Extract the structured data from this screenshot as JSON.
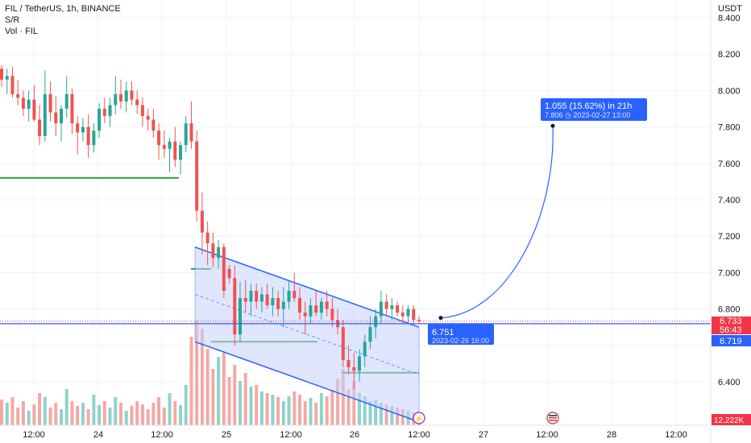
{
  "legend": {
    "symbol_line": "FIL / TetherUS, 1h, BINANCE",
    "indicator_1": "S/R",
    "indicator_2": "Vol · FIL"
  },
  "price_axis": {
    "currency": "USDT",
    "ticks": [
      "8.400",
      "8.200",
      "8.000",
      "7.800",
      "7.600",
      "7.400",
      "7.200",
      "7.000",
      "6.800",
      "6.400"
    ],
    "tag_last": "6.733",
    "tag_countdown": "56:43",
    "tag_line": "6.719",
    "tag_volume": "12.222K"
  },
  "time_axis": {
    "ticks": [
      "12:00",
      "24",
      "12:00",
      "25",
      "12:00",
      "26",
      "12:00",
      "27",
      "12:00",
      "28",
      "12:00"
    ]
  },
  "projection": {
    "top_label_line1": "1.055 (15.62%) in 21h",
    "top_label_line2": "7.806 ◷ 2023-02-27  13:00",
    "start_label_line1": "6.751",
    "start_label_line2": "2023-02-26 16:00"
  },
  "colors": {
    "up": "#26a69a",
    "down": "#ef5350",
    "vol_up": "#8fd3cb",
    "vol_down": "#f4a9a7",
    "channel_fill": "#c7d2fe",
    "channel_line": "#2962ff",
    "sr_line": "#2e9f3e",
    "label_bg": "#2962ff",
    "price_tag_red": "#f23645"
  },
  "chart_data": {
    "type": "candlestick",
    "title": "FIL / TetherUS, 1h, BINANCE",
    "ylim": [
      6.15,
      8.5
    ],
    "y_ticks": [
      8.4,
      8.2,
      8.0,
      7.8,
      7.6,
      7.4,
      7.2,
      7.0,
      6.8,
      6.4
    ],
    "x_ticks": [
      "12:00",
      "24",
      "12:00",
      "25",
      "12:00",
      "26",
      "12:00",
      "27",
      "12:00",
      "28",
      "12:00"
    ],
    "current_price": 6.733,
    "horizontal_line": 6.719,
    "sr_levels": [
      7.52,
      7.02,
      6.62,
      6.45
    ],
    "candles_ohlc": [
      [
        8.12,
        8.14,
        8.02,
        8.06
      ],
      [
        8.06,
        8.12,
        7.98,
        8.08
      ],
      [
        8.08,
        8.13,
        7.96,
        7.98
      ],
      [
        7.98,
        8.06,
        7.92,
        7.96
      ],
      [
        7.96,
        8.0,
        7.86,
        7.9
      ],
      [
        7.9,
        8.0,
        7.83,
        7.95
      ],
      [
        7.95,
        8.03,
        7.83,
        7.84
      ],
      [
        7.84,
        7.92,
        7.7,
        7.75
      ],
      [
        7.75,
        8.11,
        7.72,
        7.98
      ],
      [
        7.98,
        8.05,
        7.83,
        7.88
      ],
      [
        7.88,
        7.97,
        7.75,
        7.82
      ],
      [
        7.82,
        7.92,
        7.72,
        7.9
      ],
      [
        7.9,
        8.08,
        7.85,
        7.98
      ],
      [
        7.98,
        8.01,
        7.76,
        7.82
      ],
      [
        7.82,
        7.86,
        7.65,
        7.77
      ],
      [
        7.77,
        7.85,
        7.72,
        7.8
      ],
      [
        7.8,
        7.87,
        7.63,
        7.7
      ],
      [
        7.7,
        7.82,
        7.66,
        7.78
      ],
      [
        7.78,
        7.93,
        7.74,
        7.9
      ],
      [
        7.9,
        7.96,
        7.82,
        7.86
      ],
      [
        7.86,
        7.96,
        7.8,
        7.92
      ],
      [
        7.92,
        8.08,
        7.87,
        7.98
      ],
      [
        7.98,
        8.06,
        7.9,
        7.94
      ],
      [
        7.94,
        8.05,
        7.88,
        8.0
      ],
      [
        8.0,
        8.05,
        7.92,
        7.95
      ],
      [
        7.95,
        8.0,
        7.87,
        7.92
      ],
      [
        7.92,
        7.96,
        7.8,
        7.86
      ],
      [
        7.86,
        7.9,
        7.78,
        7.84
      ],
      [
        7.84,
        7.9,
        7.74,
        7.78
      ],
      [
        7.78,
        7.82,
        7.62,
        7.7
      ],
      [
        7.7,
        7.78,
        7.63,
        7.68
      ],
      [
        7.68,
        7.74,
        7.55,
        7.72
      ],
      [
        7.72,
        7.8,
        7.58,
        7.62
      ],
      [
        7.62,
        7.72,
        7.54,
        7.7
      ],
      [
        7.7,
        7.86,
        7.66,
        7.82
      ],
      [
        7.82,
        7.94,
        7.68,
        7.72
      ],
      [
        7.72,
        7.78,
        7.28,
        7.34
      ],
      [
        7.34,
        7.44,
        7.1,
        7.22
      ],
      [
        7.22,
        7.28,
        7.04,
        7.16
      ],
      [
        7.16,
        7.22,
        7.03,
        7.08
      ],
      [
        7.08,
        7.18,
        7.02,
        7.14
      ],
      [
        7.14,
        7.16,
        6.86,
        6.9
      ],
      [
        7.02,
        7.04,
        6.94,
        6.97
      ],
      [
        6.97,
        7.04,
        6.6,
        6.66
      ],
      [
        6.66,
        6.95,
        6.62,
        6.86
      ],
      [
        6.86,
        6.96,
        6.78,
        6.84
      ],
      [
        6.84,
        6.94,
        6.76,
        6.9
      ],
      [
        6.9,
        6.94,
        6.8,
        6.84
      ],
      [
        6.84,
        6.92,
        6.78,
        6.88
      ],
      [
        6.88,
        6.94,
        6.8,
        6.82
      ],
      [
        6.82,
        6.92,
        6.76,
        6.86
      ],
      [
        6.86,
        6.9,
        6.76,
        6.8
      ],
      [
        6.8,
        6.92,
        6.7,
        6.84
      ],
      [
        6.84,
        6.96,
        6.8,
        6.9
      ],
      [
        6.9,
        7.0,
        6.84,
        6.86
      ],
      [
        6.86,
        6.92,
        6.74,
        6.78
      ],
      [
        6.78,
        6.84,
        6.66,
        6.76
      ],
      [
        6.76,
        6.86,
        6.72,
        6.82
      ],
      [
        6.82,
        6.9,
        6.76,
        6.78
      ],
      [
        6.78,
        6.86,
        6.74,
        6.84
      ],
      [
        6.84,
        6.9,
        6.76,
        6.8
      ],
      [
        6.8,
        6.86,
        6.7,
        6.74
      ],
      [
        6.74,
        6.8,
        6.66,
        6.7
      ],
      [
        6.7,
        6.74,
        6.48,
        6.52
      ],
      [
        6.52,
        6.6,
        6.44,
        6.48
      ],
      [
        6.48,
        6.56,
        6.36,
        6.46
      ],
      [
        6.46,
        6.58,
        6.4,
        6.54
      ],
      [
        6.54,
        6.66,
        6.48,
        6.62
      ],
      [
        6.62,
        6.76,
        6.58,
        6.7
      ],
      [
        6.7,
        6.8,
        6.64,
        6.76
      ],
      [
        6.76,
        6.9,
        6.72,
        6.84
      ],
      [
        6.84,
        6.88,
        6.76,
        6.8
      ],
      [
        6.8,
        6.86,
        6.74,
        6.82
      ],
      [
        6.82,
        6.84,
        6.76,
        6.78
      ],
      [
        6.78,
        6.82,
        6.72,
        6.76
      ],
      [
        6.76,
        6.82,
        6.72,
        6.8
      ],
      [
        6.8,
        6.82,
        6.72,
        6.74
      ],
      [
        6.74,
        6.76,
        6.72,
        6.733
      ]
    ],
    "volumes": [
      32,
      28,
      35,
      22,
      30,
      18,
      26,
      40,
      35,
      22,
      28,
      20,
      45,
      30,
      24,
      28,
      20,
      38,
      25,
      30,
      22,
      35,
      28,
      18,
      24,
      30,
      26,
      20,
      28,
      35,
      22,
      40,
      30,
      25,
      50,
      110,
      130,
      120,
      95,
      70,
      85,
      90,
      60,
      75,
      55,
      65,
      48,
      50,
      42,
      40,
      38,
      35,
      30,
      36,
      42,
      38,
      30,
      34,
      28,
      40,
      36,
      44,
      58,
      70,
      45,
      55,
      40,
      36,
      30,
      32,
      28,
      26,
      24,
      22,
      20,
      18,
      16,
      14
    ],
    "channel": {
      "upper_start": 7.14,
      "upper_end": 6.7,
      "lower_start": 6.62,
      "lower_end": 6.18
    },
    "projection": {
      "from_price": 6.751,
      "from_time": "2023-02-26 16:00",
      "to_price": 7.806,
      "to_time": "2023-02-27 13:00",
      "change": "1.055 (15.62%) in 21h"
    }
  }
}
